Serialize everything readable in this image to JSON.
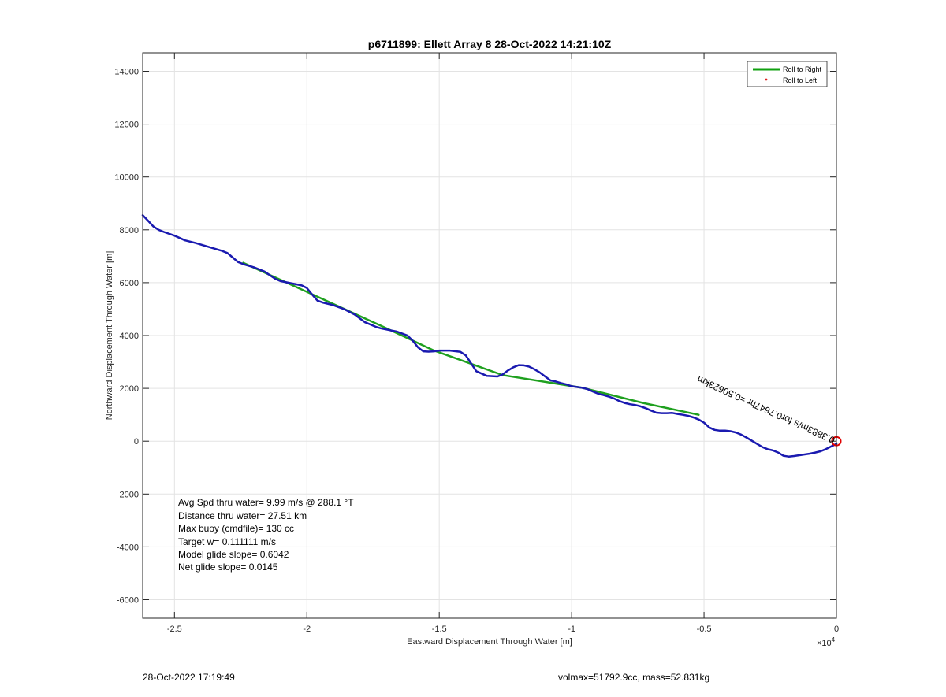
{
  "chart_data": {
    "type": "line",
    "title": "p6711899: Ellett Array 8 28-Oct-2022 14:21:10Z",
    "xlabel": "Eastward Displacement Through Water [m]",
    "ylabel": "Northward Displacement Through Water [m]",
    "x_exponent_label": "×10",
    "x_exponent": "4",
    "xlim": [
      -2.62,
      0
    ],
    "ylim": [
      -6700,
      14700
    ],
    "x_scale": 10000,
    "grid": true,
    "x_ticks": [
      -2.5,
      -2,
      -1.5,
      -1,
      -0.5,
      0
    ],
    "x_tick_labels": [
      "-2.5",
      "-2",
      "-1.5",
      "-1",
      "-0.5",
      "0"
    ],
    "y_ticks": [
      -6000,
      -4000,
      -2000,
      0,
      2000,
      4000,
      6000,
      8000,
      10000,
      12000,
      14000
    ],
    "y_tick_labels": [
      "-6000",
      "-4000",
      "-2000",
      "0",
      "2000",
      "4000",
      "6000",
      "8000",
      "10000",
      "12000",
      "14000"
    ],
    "legend": {
      "placement": "top-right",
      "entries": [
        {
          "label": "Roll to Right",
          "color": "#10a010",
          "style": "line"
        },
        {
          "label": "Roll to Left",
          "color": "#e02020",
          "style": "dot"
        }
      ]
    },
    "series": [
      {
        "name": "Roll to Right",
        "color": "#1fa01f",
        "x": [
          -2.24,
          -1.72,
          -1.52,
          -1.26,
          -0.96,
          -0.73,
          -0.52
        ],
        "y": [
          6750,
          4370,
          3430,
          2500,
          2020,
          1450,
          1000
        ]
      },
      {
        "color": "#1a1ab0",
        "x": [
          -2.62,
          -2.6,
          -2.58,
          -2.56,
          -2.54,
          -2.5,
          -2.46,
          -2.42,
          -2.38,
          -2.34,
          -2.32,
          -2.3,
          -2.28,
          -2.26,
          -2.24,
          -2.2,
          -2.16,
          -2.12,
          -2.1,
          -2.06,
          -2.02,
          -2.0,
          -1.98,
          -1.96,
          -1.94,
          -1.9,
          -1.86,
          -1.82,
          -1.78,
          -1.74,
          -1.72,
          -1.7,
          -1.66,
          -1.62,
          -1.6,
          -1.58,
          -1.56,
          -1.54,
          -1.52,
          -1.5,
          -1.46,
          -1.42,
          -1.4,
          -1.38,
          -1.36,
          -1.32,
          -1.28,
          -1.26,
          -1.24,
          -1.22,
          -1.2,
          -1.18,
          -1.16,
          -1.14,
          -1.12,
          -1.1,
          -1.08,
          -1.06,
          -1.04,
          -1.02,
          -1.0,
          -0.98,
          -0.96,
          -0.94,
          -0.92,
          -0.9,
          -0.88,
          -0.86,
          -0.84,
          -0.82,
          -0.8,
          -0.78,
          -0.76,
          -0.74,
          -0.72,
          -0.7,
          -0.68,
          -0.66,
          -0.64,
          -0.62,
          -0.6,
          -0.58,
          -0.56,
          -0.54,
          -0.52,
          -0.5,
          -0.48,
          -0.46,
          -0.44,
          -0.42,
          -0.4,
          -0.38,
          -0.36,
          -0.34,
          -0.32,
          -0.3,
          -0.28,
          -0.26,
          -0.24,
          -0.22,
          -0.2,
          -0.18,
          -0.16,
          -0.14,
          -0.12,
          -0.1,
          -0.08,
          -0.06,
          -0.04,
          -0.02,
          0.0
        ],
        "y": [
          8550,
          8350,
          8130,
          8000,
          7920,
          7780,
          7600,
          7500,
          7380,
          7260,
          7200,
          7120,
          6950,
          6780,
          6700,
          6580,
          6420,
          6150,
          6060,
          5980,
          5900,
          5800,
          5550,
          5320,
          5250,
          5150,
          5000,
          4800,
          4500,
          4330,
          4270,
          4230,
          4150,
          4000,
          3800,
          3550,
          3400,
          3390,
          3400,
          3430,
          3430,
          3380,
          3250,
          2950,
          2650,
          2470,
          2450,
          2530,
          2680,
          2800,
          2880,
          2870,
          2820,
          2720,
          2600,
          2450,
          2300,
          2260,
          2200,
          2150,
          2080,
          2050,
          2020,
          1970,
          1880,
          1800,
          1750,
          1690,
          1620,
          1520,
          1450,
          1400,
          1370,
          1320,
          1250,
          1160,
          1080,
          1060,
          1060,
          1070,
          1030,
          1000,
          960,
          900,
          820,
          700,
          520,
          430,
          400,
          400,
          380,
          330,
          250,
          140,
          20,
          -100,
          -220,
          -300,
          -350,
          -430,
          -550,
          -580,
          -560,
          -530,
          -500,
          -470,
          -430,
          -380,
          -300,
          -200,
          -100
        ]
      }
    ],
    "end_marker": {
      "x": 0,
      "y": 0,
      "color": "#e00000"
    },
    "rotated_annotation": "0.3883m/s for0.7647hr =0.50623km",
    "annotations": [
      "Avg Spd thru water=  9.99 m/s @ 288.1 °T",
      "Distance thru water= 27.51 km",
      "Max buoy (cmdfile)= 130 cc",
      "Target w= 0.111111 m/s",
      "Model glide slope= 0.6042",
      "Net glide slope= 0.0145"
    ]
  },
  "footer": {
    "left": "28-Oct-2022 17:19:49",
    "right": "volmax=51792.9cc, mass=52.831kg"
  }
}
